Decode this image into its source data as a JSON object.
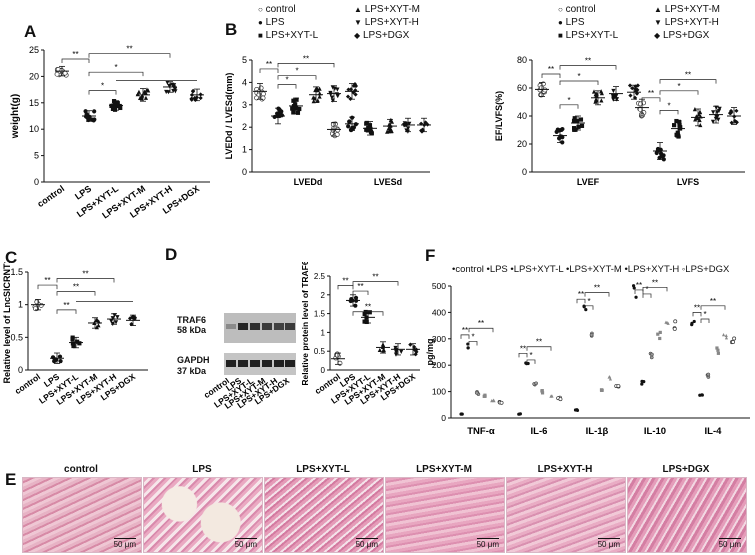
{
  "panel_labels": {
    "A": "A",
    "B": "B",
    "C": "C",
    "D": "D",
    "E": "E",
    "F": "F"
  },
  "chart_data": [
    {
      "id": "A",
      "type": "scatter",
      "ylabel": "weight(g)",
      "ylim": [
        0,
        25
      ],
      "yticks": [
        0,
        5,
        10,
        15,
        20,
        25
      ],
      "categories": [
        "control",
        "LPS",
        "LPS+XYT-L",
        "LPS+XYT-M",
        "LPS+XYT-H",
        "LPS+DGX"
      ],
      "means": [
        21,
        12.5,
        14.5,
        16.5,
        18,
        16.5
      ],
      "sd": [
        0.9,
        1,
        0.9,
        1.2,
        1,
        1.1
      ],
      "markers": [
        "open-circle",
        "filled-circle",
        "filled-square",
        "filled-triangle",
        "filled-down-triangle",
        "filled-diamond"
      ],
      "significance": [
        {
          "from": 0,
          "to": 1,
          "label": "**"
        },
        {
          "from": 1,
          "to": 2,
          "label": "*"
        },
        {
          "from": 1,
          "to": 3,
          "label": "*"
        },
        {
          "from": 1,
          "to": 4,
          "label": "**"
        }
      ]
    },
    {
      "id": "B1",
      "type": "scatter",
      "ylabel": "LVEDd / LVESd(mm)",
      "ylim": [
        0,
        5
      ],
      "yticks": [
        0,
        1,
        2,
        3,
        4,
        5
      ],
      "groups": [
        "LVEDd",
        "LVESd"
      ],
      "series": [
        {
          "name": "control",
          "marker": "open-circle",
          "means": [
            3.6,
            1.9
          ]
        },
        {
          "name": "LPS",
          "marker": "filled-circle",
          "means": [
            2.5,
            2.15
          ]
        },
        {
          "name": "LPS+XYT-L",
          "marker": "filled-square",
          "means": [
            2.95,
            1.95
          ]
        },
        {
          "name": "LPS+XYT-M",
          "marker": "filled-triangle",
          "means": [
            3.45,
            2.05
          ]
        },
        {
          "name": "LPS+XYT-H",
          "marker": "filled-down-triangle",
          "means": [
            3.5,
            2.1
          ]
        },
        {
          "name": "LPS+DGX",
          "marker": "filled-diamond",
          "means": [
            3.6,
            2.1
          ]
        }
      ],
      "significance": [
        {
          "label": "**"
        },
        {
          "label": "*"
        },
        {
          "label": "*"
        },
        {
          "label": "**"
        }
      ]
    },
    {
      "id": "B2",
      "type": "scatter",
      "ylabel": "EF/LVFS(%)",
      "ylim": [
        0,
        80
      ],
      "yticks": [
        0,
        20,
        40,
        60,
        80
      ],
      "groups": [
        "LVEF",
        "LVFS"
      ],
      "series": [
        {
          "name": "control",
          "marker": "open-circle",
          "means": [
            59,
            46
          ]
        },
        {
          "name": "LPS",
          "marker": "filled-circle",
          "means": [
            26,
            15
          ]
        },
        {
          "name": "LPS+XYT-L",
          "marker": "filled-square",
          "means": [
            35,
            31
          ]
        },
        {
          "name": "LPS+XYT-M",
          "marker": "filled-triangle",
          "means": [
            53,
            39
          ]
        },
        {
          "name": "LPS+XYT-H",
          "marker": "filled-down-triangle",
          "means": [
            56,
            41
          ]
        },
        {
          "name": "LPS+DGX",
          "marker": "filled-diamond",
          "means": [
            57,
            40
          ]
        }
      ]
    },
    {
      "id": "C",
      "type": "scatter",
      "ylabel": "Relative level of LncSICRNT1",
      "ylim": [
        0,
        1.5
      ],
      "yticks": [
        0,
        0.5,
        1.0,
        1.5
      ],
      "categories": [
        "control",
        "LPS",
        "LPS+XYT-L",
        "LPS+XYT-M",
        "LPS+XYT-H",
        "LPS+DGX"
      ],
      "means": [
        1.0,
        0.18,
        0.42,
        0.72,
        0.78,
        0.76
      ]
    },
    {
      "id": "D",
      "type": "scatter",
      "ylabel": "Relative protein level of TRAF6",
      "ylim": [
        0,
        2.5
      ],
      "yticks": [
        0,
        0.5,
        1.0,
        1.5,
        2.0,
        2.5
      ],
      "categories": [
        "control",
        "LPS",
        "LPS+XYT-L",
        "LPS+XYT-M",
        "LPS+XYT-H",
        "LPS+DGX"
      ],
      "means": [
        0.3,
        1.85,
        1.4,
        0.6,
        0.55,
        0.55
      ]
    },
    {
      "id": "F",
      "type": "scatter",
      "ylabel": "pg/mg",
      "ylim": [
        0,
        500
      ],
      "yticks": [
        0,
        100,
        200,
        300,
        400,
        500
      ],
      "groups": [
        "TNF-α",
        "IL-6",
        "IL-1β",
        "IL-10",
        "IL-4"
      ],
      "series": [
        {
          "name": "control",
          "marker": "dot",
          "means": [
            15,
            15,
            30,
            480,
            355
          ]
        },
        {
          "name": "LPS",
          "marker": "filled-circle",
          "means": [
            270,
            200,
            405,
            135,
            90
          ]
        },
        {
          "name": "LPS+XYT-L",
          "marker": "half-circle",
          "means": [
            95,
            130,
            320,
            235,
            160
          ]
        },
        {
          "name": "LPS+XYT-M",
          "marker": "half-square",
          "means": [
            85,
            100,
            110,
            310,
            255
          ]
        },
        {
          "name": "LPS+XYT-H",
          "marker": "half-triangle",
          "means": [
            65,
            80,
            150,
            360,
            305
          ]
        },
        {
          "name": "LPS+DGX",
          "marker": "open-circle",
          "means": [
            60,
            75,
            120,
            355,
            295
          ]
        }
      ]
    }
  ],
  "legend_B": [
    "control",
    "LPS",
    "LPS+XYT-L",
    "LPS+XYT-M",
    "LPS+XYT-H",
    "LPS+DGX"
  ],
  "legend_F": [
    "control",
    "LPS",
    "LPS+XYT-L",
    "LPS+XYT-M",
    "LPS+XYT-H",
    "LPS+DGX"
  ],
  "blot": {
    "traf6": "TRAF6",
    "traf6_kda": "58 kDa",
    "gapdh": "GAPDH",
    "gapdh_kda": "37 kDa",
    "lanes": [
      "control",
      "LPS",
      "LPS+XYT-L",
      "LPS+XYT-M",
      "LPS+XYT-H",
      "LPS+DGX"
    ]
  },
  "histology": {
    "titles": [
      "control",
      "LPS",
      "LPS+XYT-L",
      "LPS+XYT-M",
      "LPS+XYT-H",
      "LPS+DGX"
    ],
    "scale": "50 μm"
  }
}
